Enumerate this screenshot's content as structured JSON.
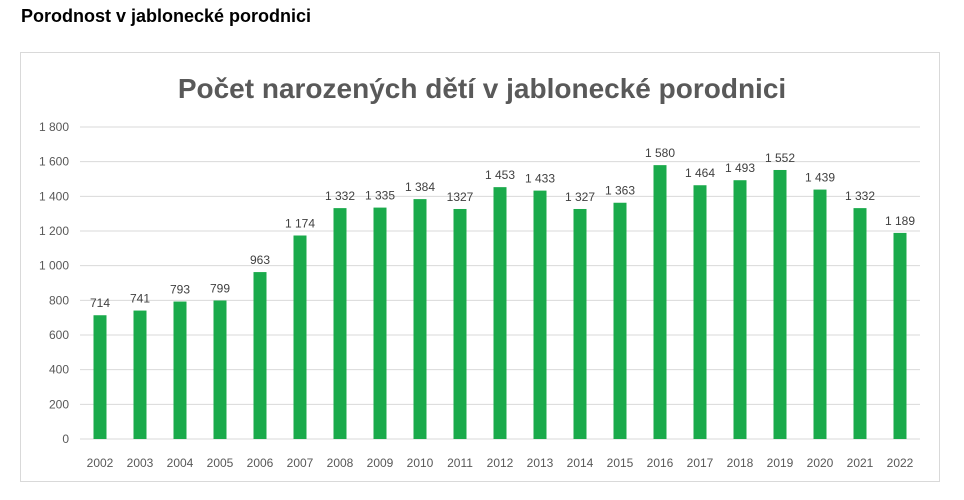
{
  "page": {
    "heading": "Porodnost v jablonecké porodnici"
  },
  "chart_data": {
    "type": "bar",
    "title": "Počet narozených dětí v jablonecké porodnici",
    "xlabel": "",
    "ylabel": "",
    "ylim": [
      0,
      1800
    ],
    "yticks": [
      0,
      200,
      400,
      600,
      800,
      1000,
      1200,
      1400,
      1600,
      1800
    ],
    "ytick_labels": [
      "0",
      "200",
      "400",
      "600",
      "800",
      "1 000",
      "1 200",
      "1 400",
      "1 600",
      "1 800"
    ],
    "grid": true,
    "legend": "none",
    "bar_color": "#1aaa4b",
    "categories": [
      "2002",
      "2003",
      "2004",
      "2005",
      "2006",
      "2007",
      "2008",
      "2009",
      "2010",
      "2011",
      "2012",
      "2013",
      "2014",
      "2015",
      "2016",
      "2017",
      "2018",
      "2019",
      "2020",
      "2021",
      "2022"
    ],
    "values": [
      714,
      741,
      793,
      799,
      963,
      1174,
      1332,
      1335,
      1384,
      1327,
      1453,
      1433,
      1327,
      1363,
      1580,
      1464,
      1493,
      1552,
      1439,
      1332,
      1189
    ],
    "data_labels": [
      "714",
      "741",
      "793",
      "799",
      "963",
      "1 174",
      "1 332",
      "1 335",
      "1 384",
      "1327",
      "1 453",
      "1 433",
      "1 327",
      "1 363",
      "1 580",
      "1 464",
      "1 493",
      "1 552",
      "1 439",
      "1 332",
      "1 189"
    ]
  }
}
